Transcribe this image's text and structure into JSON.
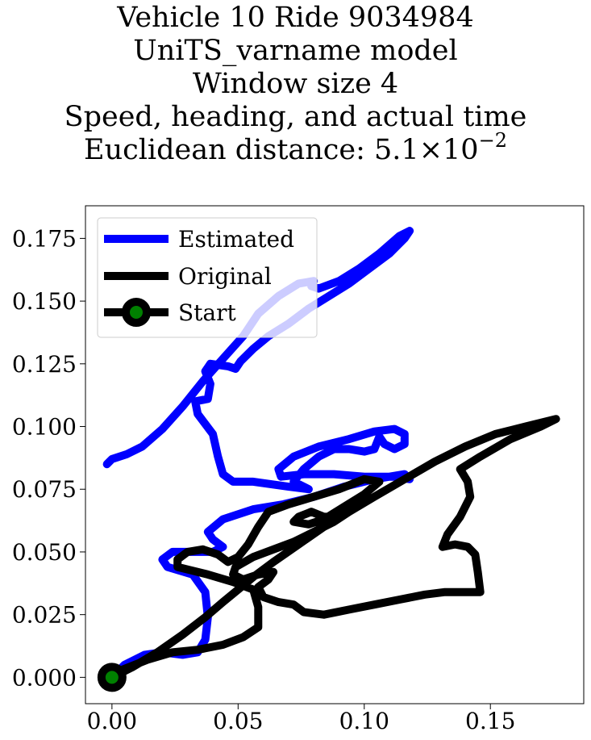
{
  "title_lines": [
    "Vehicle 10 Ride 9034984",
    "UniTS_varname model",
    "Window size 4",
    "Speed, heading, and actual time"
  ],
  "distance_line": {
    "prefix": "Euclidean distance: ",
    "mantissa": "5.1",
    "times": "×",
    "base": "10",
    "exponent": "−2"
  },
  "chart_data": {
    "type": "line",
    "xlim": [
      -0.0105,
      0.187
    ],
    "ylim": [
      -0.0105,
      0.188
    ],
    "x_ticks": [
      0.0,
      0.05,
      0.1,
      0.15
    ],
    "x_tick_labels": [
      "0.00",
      "0.05",
      "0.10",
      "0.15"
    ],
    "y_ticks": [
      0.0,
      0.025,
      0.05,
      0.075,
      0.1,
      0.125,
      0.15,
      0.175
    ],
    "y_tick_labels": [
      "0.000",
      "0.025",
      "0.050",
      "0.075",
      "0.100",
      "0.125",
      "0.150",
      "0.175"
    ],
    "grid": false,
    "legend_placement": "upper-left",
    "series": [
      {
        "name": "Estimated",
        "color": "#0000ff",
        "points": [
          [
            0.0,
            0.0
          ],
          [
            0.005,
            0.005
          ],
          [
            0.013,
            0.009
          ],
          [
            0.02,
            0.01
          ],
          [
            0.028,
            0.009
          ],
          [
            0.034,
            0.01
          ],
          [
            0.037,
            0.015
          ],
          [
            0.038,
            0.024
          ],
          [
            0.037,
            0.034
          ],
          [
            0.032,
            0.041
          ],
          [
            0.022,
            0.044
          ],
          [
            0.02,
            0.047
          ],
          [
            0.024,
            0.05
          ],
          [
            0.032,
            0.05
          ],
          [
            0.04,
            0.05
          ],
          [
            0.044,
            0.052
          ],
          [
            0.04,
            0.055
          ],
          [
            0.038,
            0.058
          ],
          [
            0.044,
            0.063
          ],
          [
            0.056,
            0.067
          ],
          [
            0.068,
            0.069
          ],
          [
            0.08,
            0.072
          ],
          [
            0.092,
            0.076
          ],
          [
            0.104,
            0.079
          ],
          [
            0.116,
            0.081
          ],
          [
            0.118,
            0.079
          ],
          [
            0.112,
            0.08
          ],
          [
            0.1,
            0.08
          ],
          [
            0.088,
            0.081
          ],
          [
            0.076,
            0.081
          ],
          [
            0.067,
            0.08
          ],
          [
            0.066,
            0.083
          ],
          [
            0.072,
            0.088
          ],
          [
            0.082,
            0.092
          ],
          [
            0.094,
            0.095
          ],
          [
            0.104,
            0.098
          ],
          [
            0.112,
            0.099
          ],
          [
            0.116,
            0.097
          ],
          [
            0.116,
            0.093
          ],
          [
            0.112,
            0.091
          ],
          [
            0.108,
            0.093
          ],
          [
            0.106,
            0.096
          ],
          [
            0.104,
            0.091
          ],
          [
            0.1,
            0.09
          ],
          [
            0.094,
            0.091
          ],
          [
            0.088,
            0.091
          ],
          [
            0.082,
            0.088
          ],
          [
            0.076,
            0.083
          ],
          [
            0.072,
            0.078
          ],
          [
            0.078,
            0.075
          ],
          [
            0.07,
            0.076
          ],
          [
            0.056,
            0.078
          ],
          [
            0.048,
            0.078
          ],
          [
            0.044,
            0.081
          ],
          [
            0.042,
            0.088
          ],
          [
            0.04,
            0.097
          ],
          [
            0.034,
            0.105
          ],
          [
            0.033,
            0.11
          ],
          [
            0.038,
            0.111
          ],
          [
            0.039,
            0.117
          ],
          [
            0.037,
            0.122
          ],
          [
            0.039,
            0.125
          ],
          [
            0.046,
            0.124
          ],
          [
            0.049,
            0.123
          ],
          [
            0.051,
            0.126
          ],
          [
            0.056,
            0.131
          ],
          [
            0.062,
            0.136
          ],
          [
            0.07,
            0.141
          ],
          [
            0.078,
            0.147
          ],
          [
            0.086,
            0.152
          ],
          [
            0.094,
            0.157
          ],
          [
            0.102,
            0.163
          ],
          [
            0.11,
            0.169
          ],
          [
            0.116,
            0.175
          ],
          [
            0.118,
            0.178
          ],
          [
            0.114,
            0.176
          ],
          [
            0.106,
            0.169
          ],
          [
            0.098,
            0.163
          ],
          [
            0.09,
            0.158
          ],
          [
            0.082,
            0.155
          ],
          [
            0.079,
            0.156
          ],
          [
            0.08,
            0.158
          ],
          [
            0.074,
            0.157
          ],
          [
            0.066,
            0.152
          ],
          [
            0.058,
            0.145
          ],
          [
            0.052,
            0.136
          ],
          [
            0.044,
            0.127
          ],
          [
            0.036,
            0.118
          ],
          [
            0.028,
            0.108
          ],
          [
            0.02,
            0.099
          ],
          [
            0.012,
            0.092
          ],
          [
            0.006,
            0.089
          ],
          [
            0.0,
            0.087
          ],
          [
            -0.002,
            0.085
          ]
        ]
      },
      {
        "name": "Original",
        "color": "#000000",
        "points": [
          [
            0.0,
            0.0
          ],
          [
            0.008,
            0.004
          ],
          [
            0.018,
            0.01
          ],
          [
            0.028,
            0.017
          ],
          [
            0.037,
            0.024
          ],
          [
            0.044,
            0.03
          ],
          [
            0.05,
            0.035
          ],
          [
            0.056,
            0.04
          ],
          [
            0.064,
            0.046
          ],
          [
            0.074,
            0.053
          ],
          [
            0.084,
            0.06
          ],
          [
            0.094,
            0.066
          ],
          [
            0.104,
            0.072
          ],
          [
            0.116,
            0.079
          ],
          [
            0.128,
            0.086
          ],
          [
            0.14,
            0.092
          ],
          [
            0.152,
            0.097
          ],
          [
            0.164,
            0.1
          ],
          [
            0.176,
            0.103
          ],
          [
            0.17,
            0.1
          ],
          [
            0.158,
            0.095
          ],
          [
            0.146,
            0.088
          ],
          [
            0.138,
            0.083
          ],
          [
            0.141,
            0.078
          ],
          [
            0.142,
            0.072
          ],
          [
            0.138,
            0.064
          ],
          [
            0.133,
            0.057
          ],
          [
            0.131,
            0.052
          ],
          [
            0.136,
            0.053
          ],
          [
            0.141,
            0.052
          ],
          [
            0.144,
            0.049
          ],
          [
            0.145,
            0.042
          ],
          [
            0.146,
            0.034
          ],
          [
            0.14,
            0.034
          ],
          [
            0.132,
            0.034
          ],
          [
            0.124,
            0.033
          ],
          [
            0.114,
            0.031
          ],
          [
            0.104,
            0.029
          ],
          [
            0.094,
            0.027
          ],
          [
            0.084,
            0.025
          ],
          [
            0.076,
            0.026
          ],
          [
            0.072,
            0.029
          ],
          [
            0.066,
            0.03
          ],
          [
            0.06,
            0.032
          ],
          [
            0.058,
            0.036
          ],
          [
            0.062,
            0.039
          ],
          [
            0.064,
            0.042
          ],
          [
            0.058,
            0.041
          ],
          [
            0.052,
            0.039
          ],
          [
            0.048,
            0.041
          ],
          [
            0.049,
            0.044
          ],
          [
            0.056,
            0.048
          ],
          [
            0.064,
            0.051
          ],
          [
            0.072,
            0.054
          ],
          [
            0.08,
            0.058
          ],
          [
            0.088,
            0.062
          ],
          [
            0.094,
            0.066
          ],
          [
            0.09,
            0.064
          ],
          [
            0.084,
            0.064
          ],
          [
            0.079,
            0.066
          ],
          [
            0.074,
            0.064
          ],
          [
            0.072,
            0.062
          ],
          [
            0.078,
            0.061
          ],
          [
            0.084,
            0.063
          ],
          [
            0.092,
            0.068
          ],
          [
            0.1,
            0.073
          ],
          [
            0.106,
            0.078
          ],
          [
            0.1,
            0.079
          ],
          [
            0.09,
            0.075
          ],
          [
            0.08,
            0.072
          ],
          [
            0.07,
            0.069
          ],
          [
            0.062,
            0.066
          ],
          [
            0.058,
            0.06
          ],
          [
            0.054,
            0.053
          ],
          [
            0.05,
            0.048
          ],
          [
            0.046,
            0.046
          ],
          [
            0.042,
            0.049
          ],
          [
            0.036,
            0.051
          ],
          [
            0.03,
            0.05
          ],
          [
            0.026,
            0.047
          ],
          [
            0.026,
            0.044
          ],
          [
            0.03,
            0.043
          ],
          [
            0.038,
            0.041
          ],
          [
            0.048,
            0.038
          ],
          [
            0.056,
            0.035
          ],
          [
            0.058,
            0.028
          ],
          [
            0.058,
            0.02
          ],
          [
            0.052,
            0.016
          ],
          [
            0.044,
            0.013
          ],
          [
            0.034,
            0.011
          ],
          [
            0.024,
            0.01
          ],
          [
            0.014,
            0.007
          ],
          [
            0.004,
            0.003
          ],
          [
            0.0,
            0.0
          ]
        ]
      }
    ],
    "markers": [
      {
        "name": "Start",
        "x": 0.0,
        "y": 0.0,
        "edge_color": "#000000",
        "face_color": "#008000"
      }
    ]
  }
}
